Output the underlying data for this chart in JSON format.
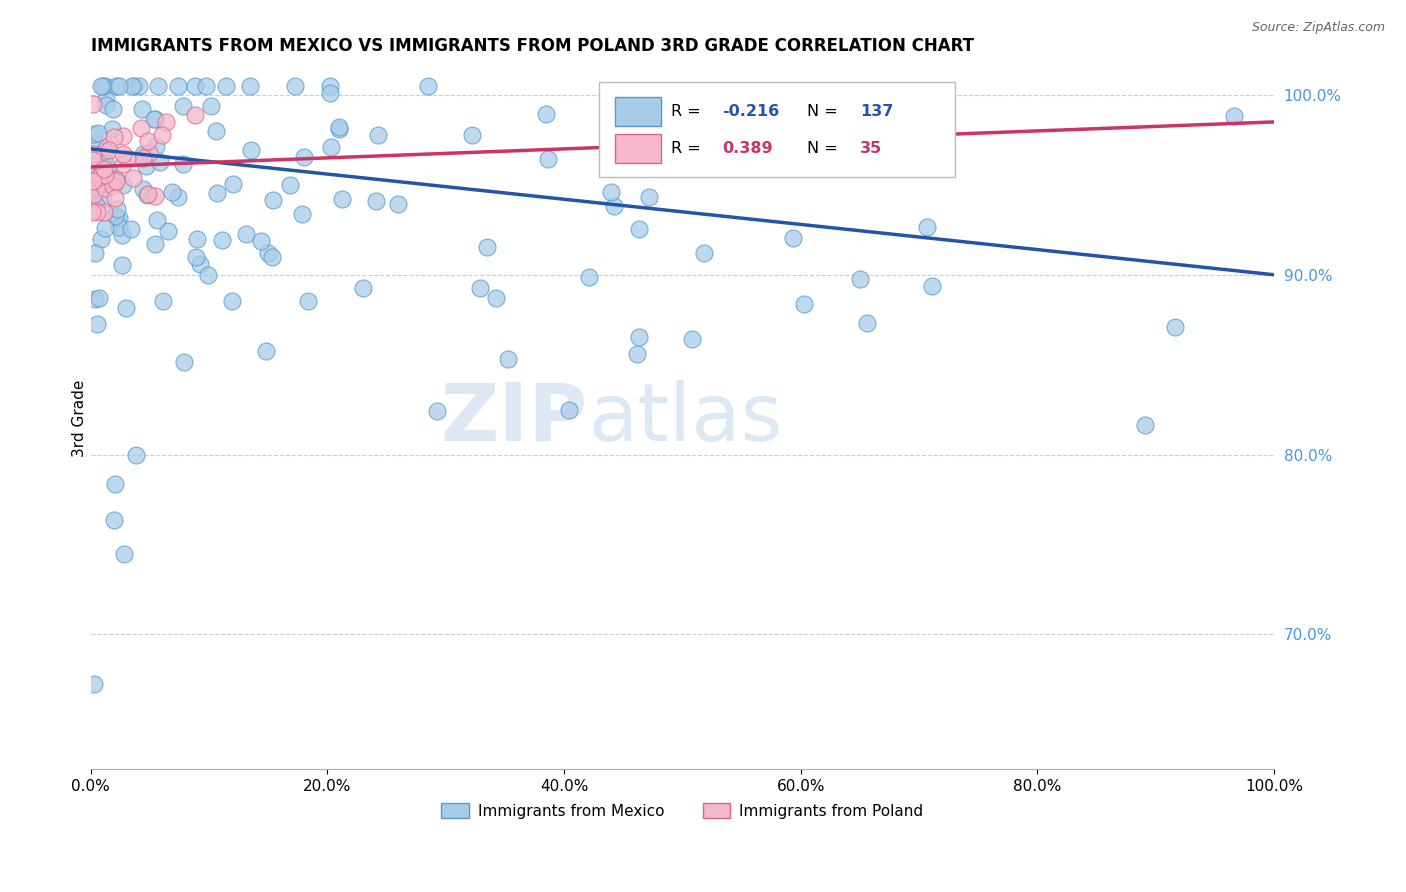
{
  "title": "IMMIGRANTS FROM MEXICO VS IMMIGRANTS FROM POLAND 3RD GRADE CORRELATION CHART",
  "source": "Source: ZipAtlas.com",
  "ylabel": "3rd Grade",
  "xlim": [
    0.0,
    1.0
  ],
  "ylim": [
    0.625,
    1.015
  ],
  "xtick_vals": [
    0.0,
    0.2,
    0.4,
    0.6,
    0.8,
    1.0
  ],
  "xtick_labels": [
    "0.0%",
    "20.0%",
    "40.0%",
    "60.0%",
    "80.0%",
    "100.0%"
  ],
  "ytick_vals": [
    0.7,
    0.8,
    0.9,
    1.0
  ],
  "ytick_labels": [
    "70.0%",
    "80.0%",
    "90.0%",
    "100.0%"
  ],
  "mexico_R": -0.216,
  "mexico_N": 137,
  "poland_R": 0.389,
  "poland_N": 35,
  "legend_label_mexico": "Immigrants from Mexico",
  "legend_label_poland": "Immigrants from Poland",
  "mexico_color": "#a8cce8",
  "poland_color": "#f5b8cc",
  "mexico_edge_color": "#5599cc",
  "poland_edge_color": "#dd6688",
  "mexico_line_color": "#2255aa",
  "poland_line_color": "#cc3366",
  "ytick_color": "#4499dd",
  "watermark_zip": "ZIP",
  "watermark_atlas": "atlas",
  "background_color": "#ffffff",
  "grid_color": "#cccccc",
  "mexico_trend_start_y": 0.97,
  "mexico_trend_end_y": 0.9,
  "poland_trend_start_y": 0.96,
  "poland_trend_end_y": 0.985
}
